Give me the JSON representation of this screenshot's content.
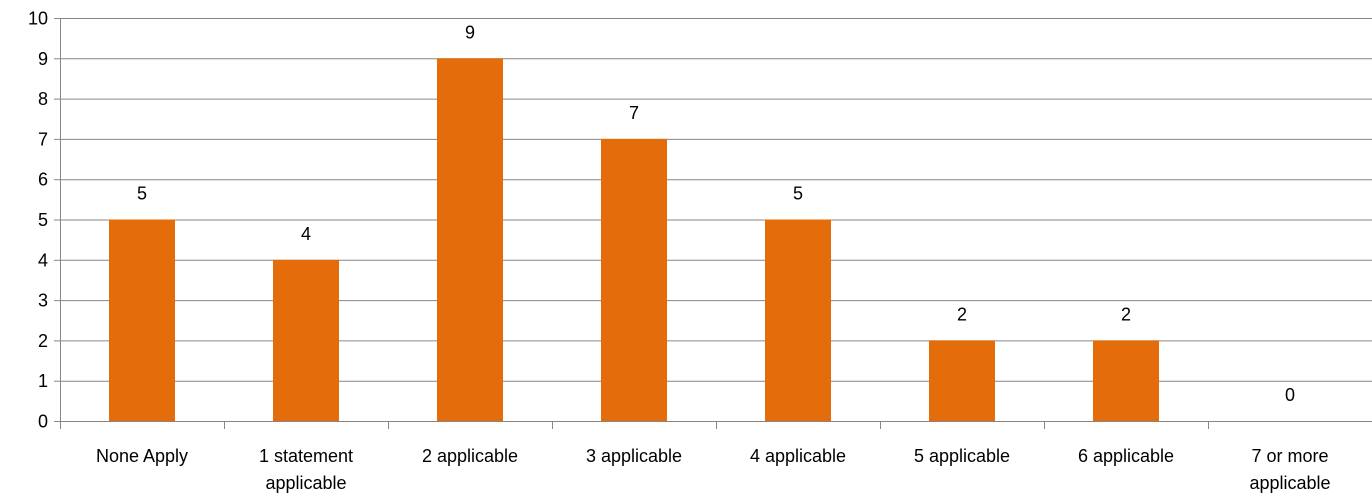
{
  "chart_data": {
    "type": "bar",
    "categories": [
      "None Apply",
      "1 statement applicable",
      "2 applicable",
      "3 applicable",
      "4 applicable",
      "5 applicable",
      "6 applicable",
      "7 or more applicable"
    ],
    "category_lines": [
      [
        "None Apply"
      ],
      [
        "1 statement",
        "applicable"
      ],
      [
        "2 applicable"
      ],
      [
        "3 applicable"
      ],
      [
        "4 applicable"
      ],
      [
        "5 applicable"
      ],
      [
        "6 applicable"
      ],
      [
        "7 or more",
        "applicable"
      ]
    ],
    "values": [
      5,
      4,
      9,
      7,
      5,
      2,
      2,
      0
    ],
    "data_labels": [
      "5",
      "4",
      "9",
      "7",
      "5",
      "2",
      "2",
      "0"
    ],
    "ylim": [
      0,
      10
    ],
    "yticks": [
      "0",
      "1",
      "2",
      "3",
      "4",
      "5",
      "6",
      "7",
      "8",
      "9",
      "10"
    ],
    "grid": true,
    "legend": "none",
    "bar_color": "#E46C0A",
    "grid_color": "#868686"
  }
}
